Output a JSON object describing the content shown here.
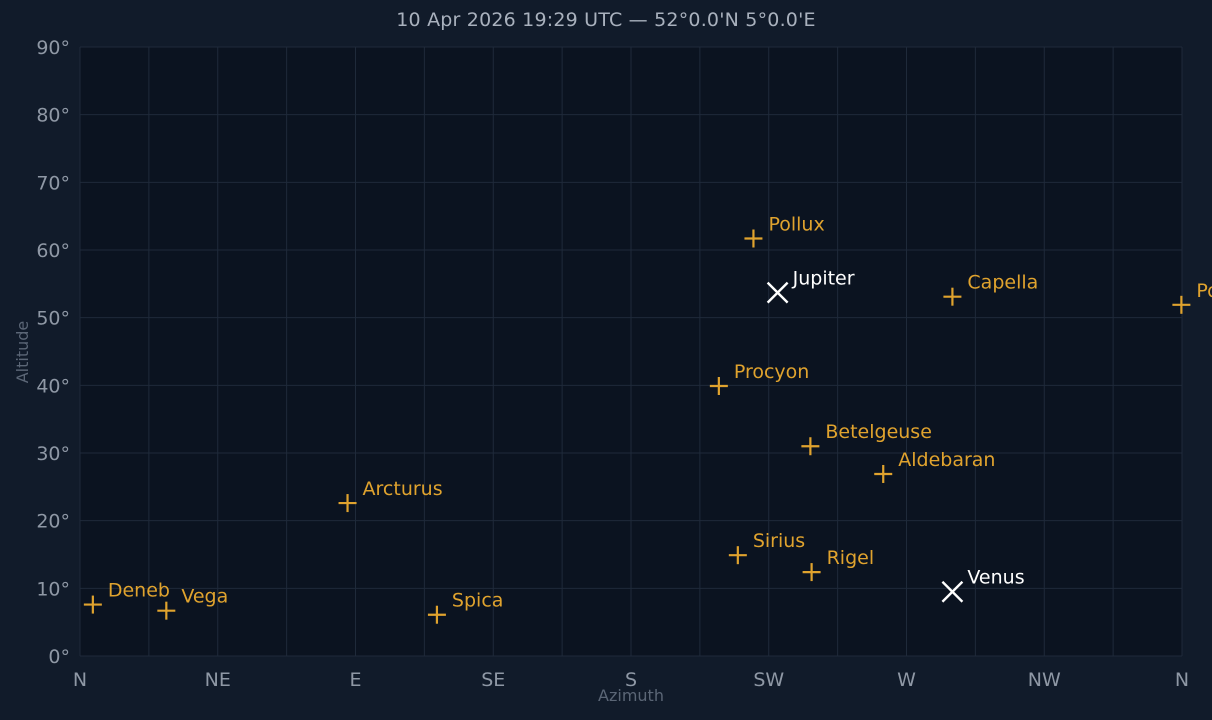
{
  "header": {
    "title": "10 Apr 2026 19:29 UTC — 52°0.0'N 5°0.0'E"
  },
  "colors": {
    "background": "#111b2a",
    "plot_background": "#0b1320",
    "grid": "#1f2a3a",
    "star": "#e0a32e",
    "planet": "#ffffff"
  },
  "chart_data": {
    "type": "scatter",
    "xlabel": "Azimuth",
    "ylabel": "Altitude",
    "xlim": [
      0,
      360
    ],
    "ylim": [
      0,
      90
    ],
    "x_ticks": [
      {
        "value": 0,
        "label": "N"
      },
      {
        "value": 45,
        "label": "NE"
      },
      {
        "value": 90,
        "label": "E"
      },
      {
        "value": 135,
        "label": "SE"
      },
      {
        "value": 180,
        "label": "S"
      },
      {
        "value": 225,
        "label": "SW"
      },
      {
        "value": 270,
        "label": "W"
      },
      {
        "value": 315,
        "label": "NW"
      },
      {
        "value": 360,
        "label": "N"
      }
    ],
    "y_ticks": [
      {
        "value": 0,
        "label": "0°"
      },
      {
        "value": 10,
        "label": "10°"
      },
      {
        "value": 20,
        "label": "20°"
      },
      {
        "value": 30,
        "label": "30°"
      },
      {
        "value": 40,
        "label": "40°"
      },
      {
        "value": 50,
        "label": "50°"
      },
      {
        "value": 60,
        "label": "60°"
      },
      {
        "value": 70,
        "label": "70°"
      },
      {
        "value": 80,
        "label": "80°"
      },
      {
        "value": 90,
        "label": "90°"
      }
    ],
    "grid": true,
    "legend": false,
    "series": [
      {
        "kind": "star",
        "marker": "plus",
        "points": [
          {
            "name": "Deneb",
            "azimuth": 4.2,
            "altitude": 7.6
          },
          {
            "name": "Vega",
            "azimuth": 28.2,
            "altitude": 6.7
          },
          {
            "name": "Arcturus",
            "azimuth": 87.4,
            "altitude": 22.6
          },
          {
            "name": "Spica",
            "azimuth": 116.6,
            "altitude": 6.1
          },
          {
            "name": "Procyon",
            "azimuth": 208.7,
            "altitude": 39.9
          },
          {
            "name": "Pollux",
            "azimuth": 220.0,
            "altitude": 61.7
          },
          {
            "name": "Sirius",
            "azimuth": 214.9,
            "altitude": 14.9
          },
          {
            "name": "Betelgeuse",
            "azimuth": 238.6,
            "altitude": 31.0
          },
          {
            "name": "Rigel",
            "azimuth": 239.0,
            "altitude": 12.4
          },
          {
            "name": "Aldebaran",
            "azimuth": 262.4,
            "altitude": 26.9
          },
          {
            "name": "Capella",
            "azimuth": 285.0,
            "altitude": 53.1
          },
          {
            "name": "Po",
            "azimuth": 359.8,
            "altitude": 51.9
          }
        ]
      },
      {
        "kind": "planet",
        "marker": "x",
        "points": [
          {
            "name": "Jupiter",
            "azimuth": 227.9,
            "altitude": 53.7
          },
          {
            "name": "Venus",
            "azimuth": 285.0,
            "altitude": 9.5
          }
        ]
      }
    ]
  }
}
